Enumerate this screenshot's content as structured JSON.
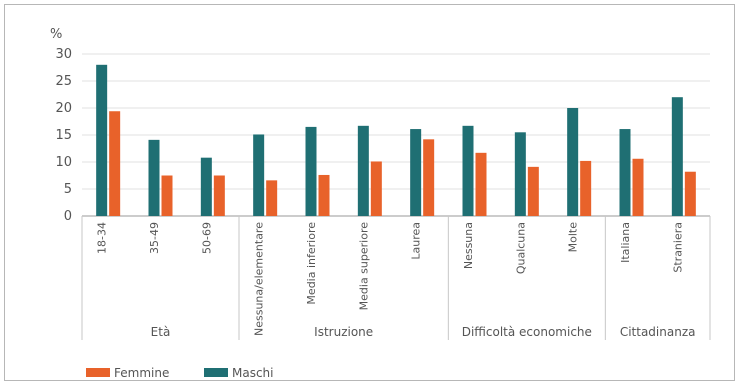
{
  "chart_data": {
    "type": "bar",
    "y_unit": "%",
    "ylim": [
      0,
      30
    ],
    "yticks": [
      0,
      5,
      10,
      15,
      20,
      25,
      30
    ],
    "grid": true,
    "legend_position": "bottom-left",
    "categories": [
      "18-34",
      "35-49",
      "50-69",
      "Nessuna/elementare",
      "Media inferiore",
      "Media superiore",
      "Laurea",
      "Nessuna",
      "Qualcuna",
      "Molte",
      "Italiana",
      "Straniera"
    ],
    "groups": [
      {
        "label": "Età",
        "count": 3
      },
      {
        "label": "Istruzione",
        "count": 4
      },
      {
        "label": "Difficoltà economiche",
        "count": 3
      },
      {
        "label": "Cittadinanza",
        "count": 2
      }
    ],
    "series": [
      {
        "name": "Maschi",
        "color": "#1f6f73",
        "values": [
          28.0,
          14.1,
          10.8,
          15.1,
          16.5,
          16.7,
          16.1,
          16.7,
          15.5,
          20.0,
          16.1,
          22.0
        ]
      },
      {
        "name": "Femmine",
        "color": "#e8622a",
        "values": [
          19.4,
          7.5,
          7.5,
          6.6,
          7.6,
          10.1,
          14.2,
          11.7,
          9.1,
          10.2,
          10.6,
          8.2
        ]
      }
    ],
    "legend": [
      "Femmine",
      "Maschi"
    ]
  }
}
